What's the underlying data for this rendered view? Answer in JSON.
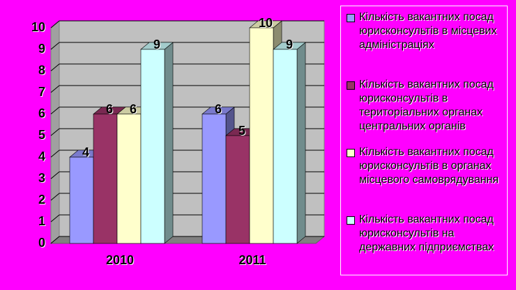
{
  "chart_data": {
    "type": "bar3d",
    "categories": [
      "2010",
      "2011"
    ],
    "series": [
      {
        "name": "Кількість вакантних посад юрисконсультів в місцевих адміністраціях",
        "color": "#9999ff",
        "values": [
          4,
          6
        ]
      },
      {
        "name": "Кількість вакантних посад юрисконсультів в територіальних органах центральних органів",
        "color": "#993366",
        "values": [
          6,
          5
        ]
      },
      {
        "name": "Кількість вакантних посад юрисконсультів в органах місцевого самоврядування",
        "color": "#ffffcc",
        "values": [
          6,
          10
        ]
      },
      {
        "name": "Кількість вакантних посад юрисконсультів на державних підприємствах",
        "color": "#ccffff",
        "values": [
          9,
          9
        ]
      }
    ],
    "ylim": [
      0,
      10
    ],
    "yticks": [
      0,
      1,
      2,
      3,
      4,
      5,
      6,
      7,
      8,
      9,
      10
    ],
    "grid": true,
    "legend": "right"
  }
}
